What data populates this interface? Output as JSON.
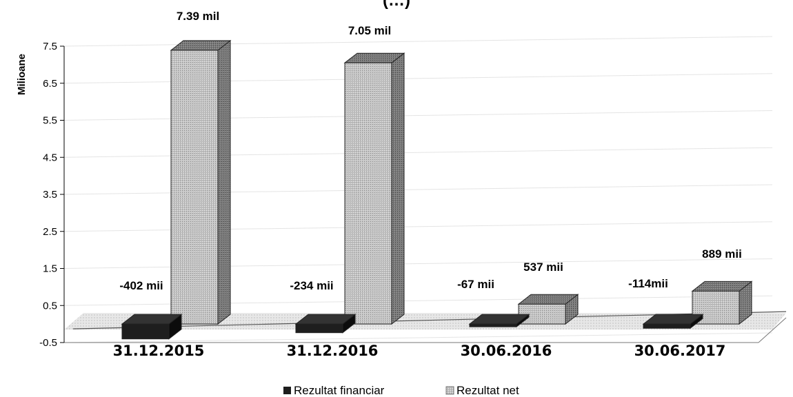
{
  "chart_data": {
    "type": "bar",
    "title": "(…)",
    "ylabel": "Milioane",
    "ylim": [
      -0.5,
      7.5
    ],
    "yticks": [
      "7.5",
      "6.5",
      "5.5",
      "4.5",
      "3.5",
      "2.5",
      "1.5",
      "0.5",
      "-0.5"
    ],
    "categories": [
      "31.12.2015",
      "31.12.2016",
      "30.06.2016",
      "30.06.2017"
    ],
    "series": [
      {
        "name": "Rezultat financiar",
        "values": [
          -0.402,
          -0.234,
          -0.067,
          -0.114
        ],
        "labels": [
          "-402 mii",
          "-234 mii",
          "-67 mii",
          "-114mii"
        ],
        "color": "#1e1e1e"
      },
      {
        "name": "Rezultat net",
        "values": [
          7.39,
          7.05,
          0.537,
          0.889
        ],
        "labels": [
          "7.39 mil",
          "7.05 mil",
          "537 mii",
          "889 mii"
        ],
        "color": "#b4b4b4"
      }
    ],
    "grid": true,
    "legend": "bottom",
    "style": "3d-column"
  }
}
